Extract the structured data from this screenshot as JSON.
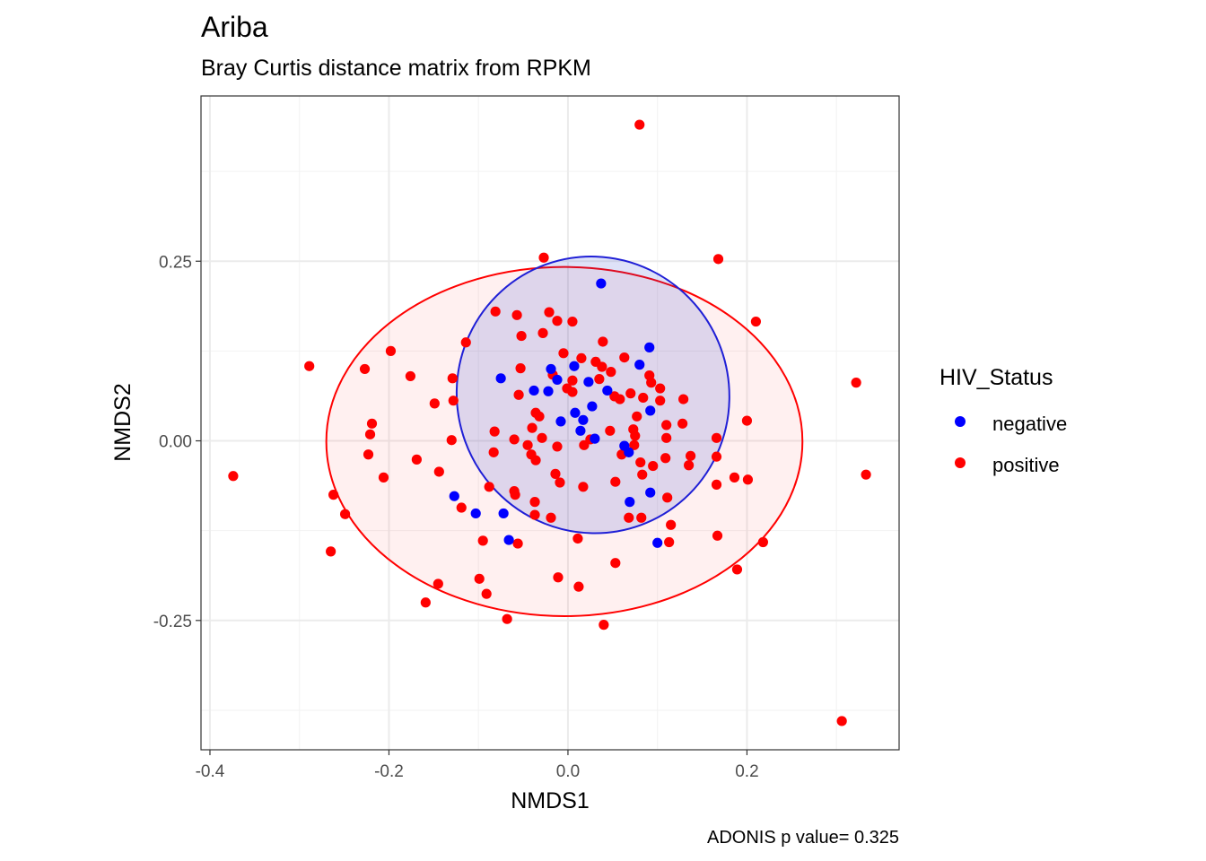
{
  "chart_data": {
    "type": "scatter",
    "title": "Ariba",
    "subtitle": "Bray Curtis distance matrix from RPKM",
    "xlabel": "NMDS1",
    "ylabel": "NMDS2",
    "caption": "ADONIS p value= 0.325",
    "xlim": [
      -0.41,
      0.37
    ],
    "ylim": [
      -0.43,
      0.48
    ],
    "x_ticks": [
      -0.4,
      -0.2,
      0.0,
      0.2
    ],
    "x_tick_labels": [
      "-0.4",
      "-0.2",
      "0.0",
      "0.2"
    ],
    "y_ticks": [
      0.25,
      0.0,
      -0.25
    ],
    "y_tick_labels": [
      "0.25",
      "0.00",
      "-0.25"
    ],
    "grid": true,
    "legend": {
      "title": "HIV_Status",
      "position": "right",
      "entries": [
        {
          "label": "negative",
          "color": "#0000ff"
        },
        {
          "label": "positive",
          "color": "#ff0000"
        }
      ]
    },
    "ellipses": [
      {
        "group": "positive",
        "cx": -0.004,
        "cy": -0.001,
        "rx": 0.266,
        "ry": 0.243,
        "angle": 0,
        "stroke": "#ff0000",
        "fill": "#ff0000",
        "fill_opacity": 0.06
      },
      {
        "group": "negative",
        "cx": 0.028,
        "cy": 0.064,
        "rx": 0.152,
        "ry": 0.193,
        "angle": 20,
        "stroke": "#1f1fd6",
        "fill": "#1f3fd0",
        "fill_opacity": 0.15
      }
    ],
    "series": [
      {
        "name": "negative",
        "color": "#0000ff",
        "points": [
          [
            0.037,
            0.219
          ],
          [
            0.091,
            0.13
          ],
          [
            0.08,
            0.106
          ],
          [
            -0.019,
            0.1
          ],
          [
            0.007,
            0.104
          ],
          [
            -0.075,
            0.087
          ],
          [
            -0.012,
            0.085
          ],
          [
            0.023,
            0.082
          ],
          [
            0.044,
            0.07
          ],
          [
            -0.022,
            0.069
          ],
          [
            -0.038,
            0.07
          ],
          [
            0.027,
            0.048
          ],
          [
            0.008,
            0.039
          ],
          [
            0.092,
            0.042
          ],
          [
            0.017,
            0.029
          ],
          [
            -0.008,
            0.027
          ],
          [
            0.014,
            0.014
          ],
          [
            0.03,
            0.003
          ],
          [
            0.063,
            -0.007
          ],
          [
            0.068,
            -0.016
          ],
          [
            -0.127,
            -0.077
          ],
          [
            -0.103,
            -0.101
          ],
          [
            -0.072,
            -0.101
          ],
          [
            0.069,
            -0.085
          ],
          [
            0.092,
            -0.072
          ],
          [
            -0.066,
            -0.138
          ],
          [
            0.1,
            -0.142
          ]
        ]
      },
      {
        "name": "positive",
        "color": "#ff0000",
        "points": [
          [
            0.08,
            0.44
          ],
          [
            -0.027,
            0.255
          ],
          [
            0.168,
            0.253
          ],
          [
            0.21,
            0.166
          ],
          [
            -0.081,
            0.18
          ],
          [
            -0.057,
            0.175
          ],
          [
            -0.021,
            0.179
          ],
          [
            -0.012,
            0.167
          ],
          [
            0.005,
            0.166
          ],
          [
            -0.052,
            0.146
          ],
          [
            -0.028,
            0.15
          ],
          [
            0.039,
            0.138
          ],
          [
            -0.114,
            0.137
          ],
          [
            -0.198,
            0.125
          ],
          [
            -0.289,
            0.104
          ],
          [
            -0.227,
            0.1
          ],
          [
            -0.176,
            0.09
          ],
          [
            -0.129,
            0.087
          ],
          [
            -0.053,
            0.101
          ],
          [
            -0.005,
            0.122
          ],
          [
            0.015,
            0.115
          ],
          [
            0.031,
            0.11
          ],
          [
            0.063,
            0.116
          ],
          [
            0.091,
            0.091
          ],
          [
            0.038,
            0.103
          ],
          [
            -0.017,
            0.092
          ],
          [
            0.005,
            0.084
          ],
          [
            0.035,
            0.086
          ],
          [
            0.048,
            0.096
          ],
          [
            0.093,
            0.081
          ],
          [
            0.103,
            0.073
          ],
          [
            0.07,
            0.066
          ],
          [
            0.129,
            0.058
          ],
          [
            0.084,
            0.06
          ],
          [
            -0.055,
            0.064
          ],
          [
            -0.036,
            0.039
          ],
          [
            -0.001,
            0.073
          ],
          [
            0.005,
            0.068
          ],
          [
            0.058,
            0.058
          ],
          [
            0.052,
            0.062
          ],
          [
            0.103,
            0.056
          ],
          [
            -0.128,
            0.056
          ],
          [
            -0.149,
            0.052
          ],
          [
            -0.032,
            0.034
          ],
          [
            0.077,
            0.034
          ],
          [
            0.2,
            0.028
          ],
          [
            0.322,
            0.081
          ],
          [
            -0.219,
            0.024
          ],
          [
            -0.221,
            0.009
          ],
          [
            -0.082,
            0.013
          ],
          [
            -0.04,
            0.018
          ],
          [
            0.11,
            0.022
          ],
          [
            0.128,
            0.024
          ],
          [
            0.047,
            0.014
          ],
          [
            0.073,
            0.016
          ],
          [
            0.075,
            0.007
          ],
          [
            -0.13,
            0.001
          ],
          [
            -0.06,
            0.002
          ],
          [
            -0.029,
            0.004
          ],
          [
            0.025,
            0.002
          ],
          [
            0.11,
            0.004
          ],
          [
            0.166,
            0.004
          ],
          [
            -0.045,
            -0.006
          ],
          [
            -0.012,
            -0.008
          ],
          [
            0.018,
            -0.006
          ],
          [
            0.074,
            -0.006
          ],
          [
            -0.223,
            -0.019
          ],
          [
            -0.169,
            -0.026
          ],
          [
            -0.083,
            -0.016
          ],
          [
            -0.041,
            -0.019
          ],
          [
            -0.036,
            -0.027
          ],
          [
            0.06,
            -0.019
          ],
          [
            0.109,
            -0.024
          ],
          [
            0.137,
            -0.021
          ],
          [
            0.166,
            -0.022
          ],
          [
            0.333,
            -0.047
          ],
          [
            -0.374,
            -0.049
          ],
          [
            -0.206,
            -0.051
          ],
          [
            -0.144,
            -0.043
          ],
          [
            0.081,
            -0.03
          ],
          [
            0.095,
            -0.035
          ],
          [
            0.135,
            -0.034
          ],
          [
            -0.014,
            -0.046
          ],
          [
            -0.009,
            -0.058
          ],
          [
            0.017,
            -0.064
          ],
          [
            0.053,
            -0.057
          ],
          [
            0.083,
            -0.047
          ],
          [
            0.166,
            -0.061
          ],
          [
            0.186,
            -0.051
          ],
          [
            0.201,
            -0.054
          ],
          [
            -0.262,
            -0.075
          ],
          [
            -0.088,
            -0.064
          ],
          [
            -0.06,
            -0.07
          ],
          [
            -0.119,
            -0.093
          ],
          [
            -0.059,
            -0.075
          ],
          [
            -0.037,
            -0.085
          ],
          [
            0.111,
            -0.079
          ],
          [
            -0.249,
            -0.102
          ],
          [
            -0.037,
            -0.103
          ],
          [
            -0.019,
            -0.107
          ],
          [
            0.068,
            -0.107
          ],
          [
            0.082,
            -0.107
          ],
          [
            0.115,
            -0.117
          ],
          [
            -0.095,
            -0.139
          ],
          [
            -0.056,
            -0.143
          ],
          [
            0.011,
            -0.136
          ],
          [
            0.167,
            -0.132
          ],
          [
            0.218,
            -0.141
          ],
          [
            0.113,
            -0.141
          ],
          [
            -0.265,
            -0.154
          ],
          [
            0.053,
            -0.17
          ],
          [
            -0.099,
            -0.192
          ],
          [
            -0.011,
            -0.19
          ],
          [
            -0.145,
            -0.199
          ],
          [
            0.012,
            -0.203
          ],
          [
            0.189,
            -0.179
          ],
          [
            -0.091,
            -0.213
          ],
          [
            -0.159,
            -0.225
          ],
          [
            -0.068,
            -0.248
          ],
          [
            0.04,
            -0.256
          ],
          [
            0.306,
            -0.39
          ]
        ]
      }
    ]
  }
}
